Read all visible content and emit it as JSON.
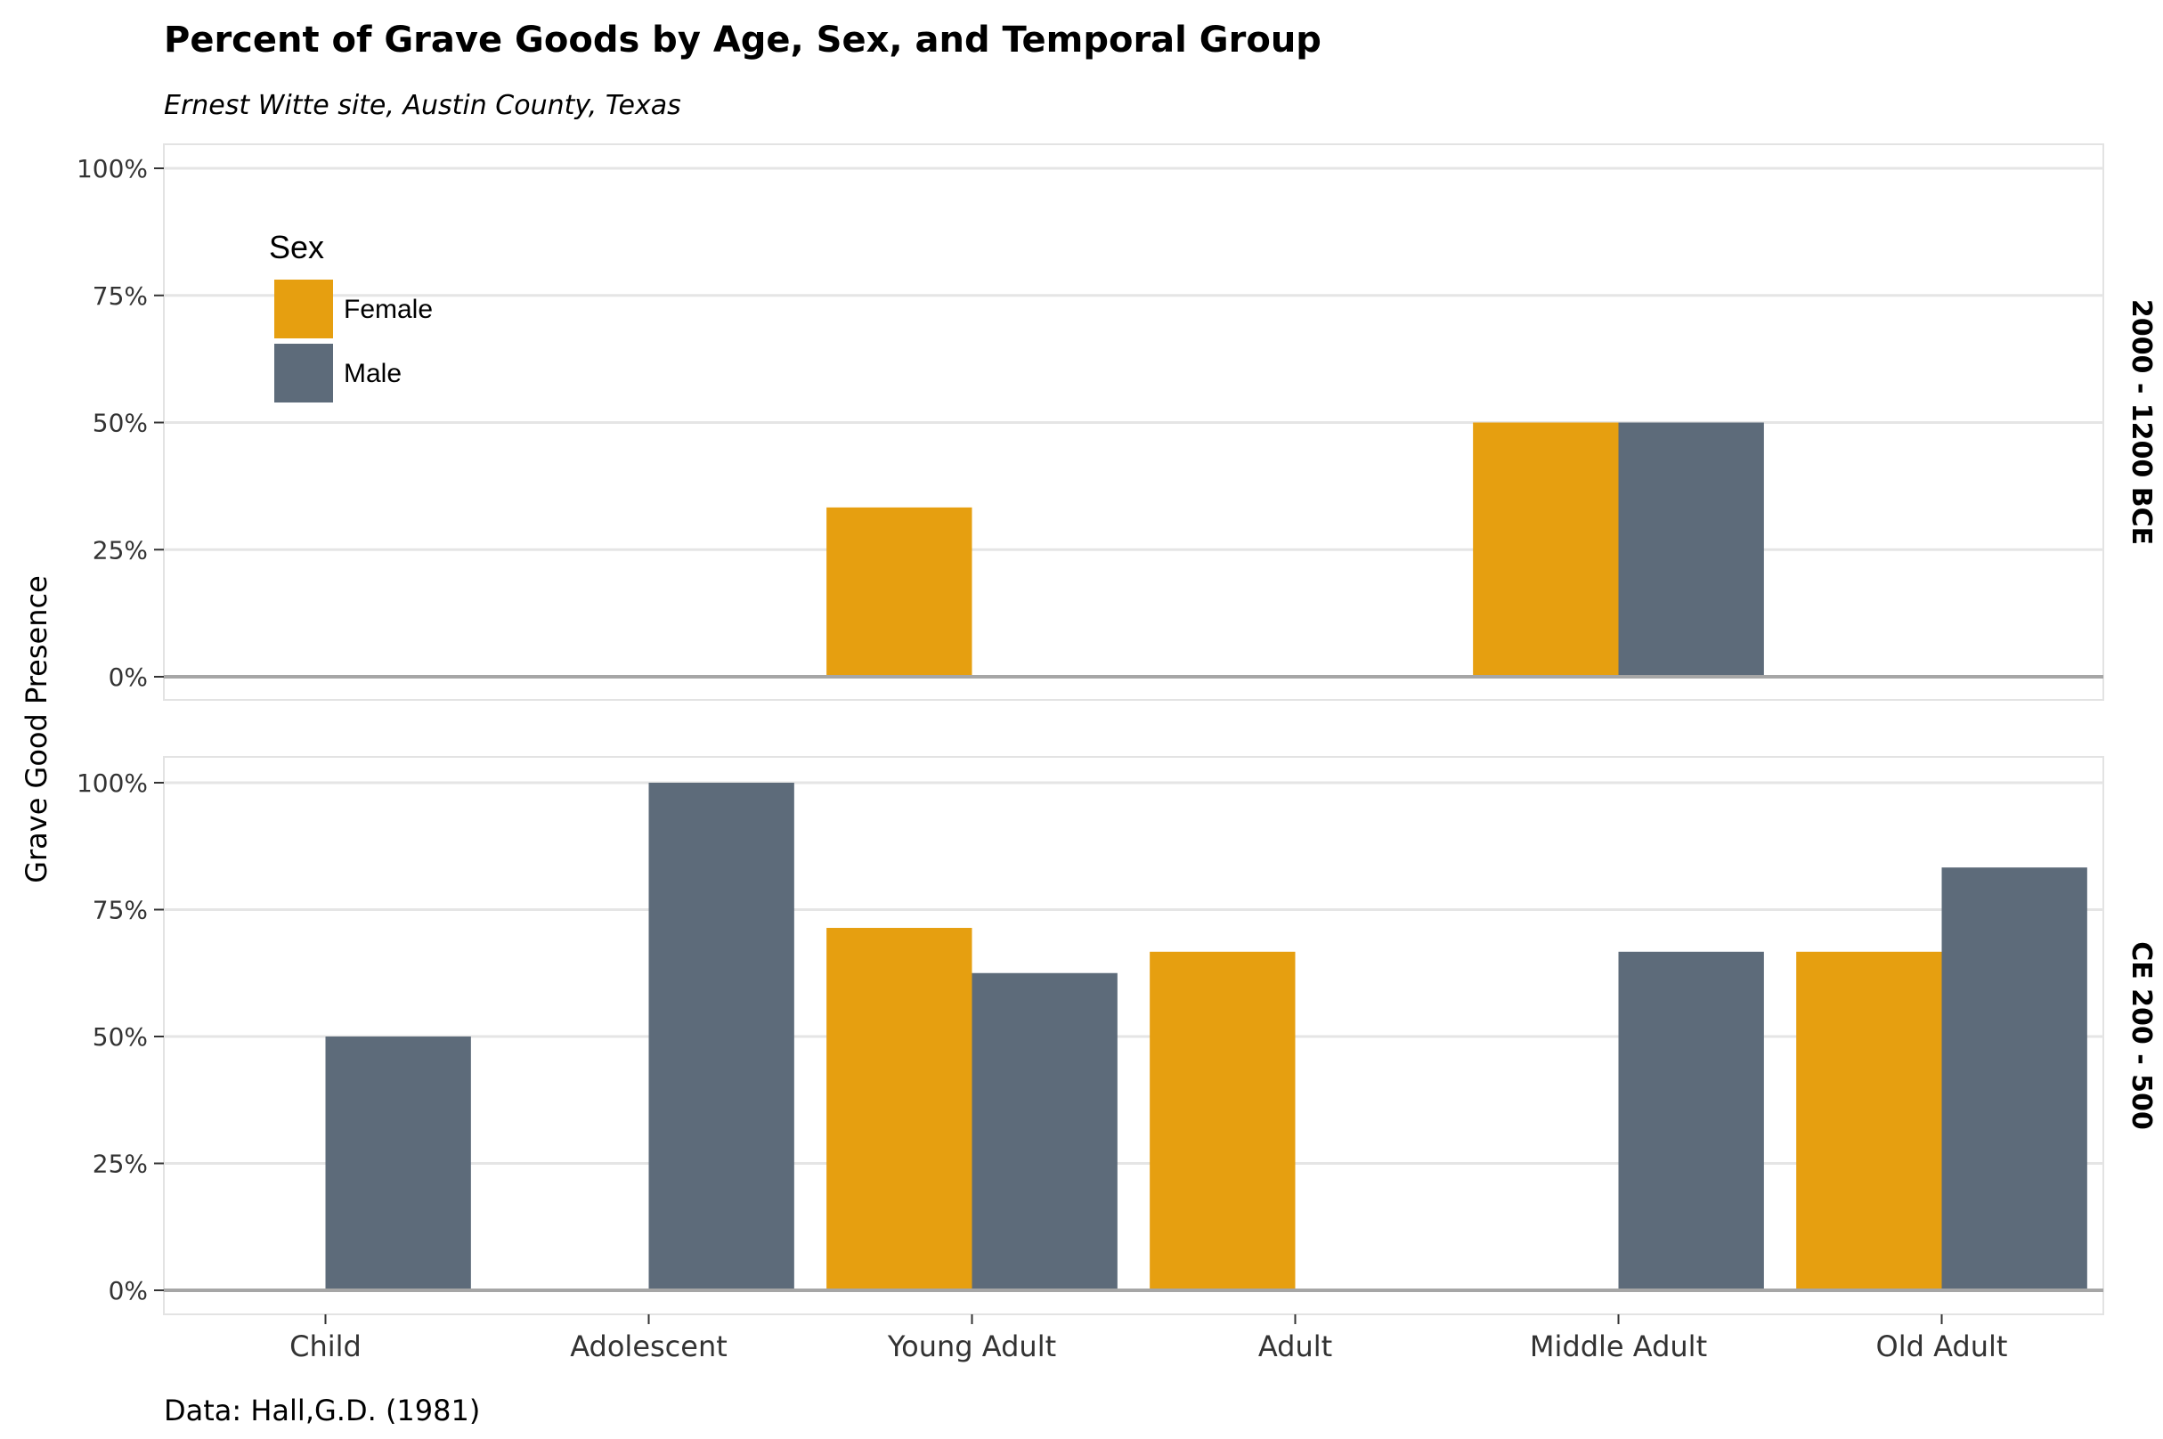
{
  "chart_data": {
    "type": "bar",
    "title": "Percent of Grave Goods by Age, Sex, and Temporal Group",
    "subtitle": "Ernest Witte site, Austin County, Texas",
    "caption": "Data: Hall,G.D. (1981)",
    "ylabel": "Grave Good Presence",
    "xlabel": "",
    "categories": [
      "Child",
      "Adolescent",
      "Young Adult",
      "Adult",
      "Middle Adult",
      "Old Adult"
    ],
    "yticks": [
      0,
      25,
      50,
      75,
      100
    ],
    "ytick_labels": [
      "0%",
      "25%",
      "50%",
      "75%",
      "100%"
    ],
    "ylim": [
      0,
      100
    ],
    "grid": true,
    "legend": {
      "title": "Sex",
      "placement": "top-left inside first panel",
      "entries": [
        {
          "name": "Female",
          "color": "#E69F10"
        },
        {
          "name": "Male",
          "color": "#5D6B7A"
        }
      ]
    },
    "facets": [
      {
        "label": "2000 - 1200 BCE",
        "series": [
          {
            "name": "Female",
            "values": [
              null,
              null,
              33.3,
              null,
              50,
              null
            ]
          },
          {
            "name": "Male",
            "values": [
              null,
              null,
              null,
              null,
              50,
              null
            ]
          }
        ]
      },
      {
        "label": "CE 200 - 500",
        "series": [
          {
            "name": "Female",
            "values": [
              null,
              null,
              71.4,
              66.7,
              null,
              66.7
            ]
          },
          {
            "name": "Male",
            "values": [
              50,
              100,
              62.5,
              null,
              66.7,
              83.3
            ]
          }
        ]
      }
    ]
  }
}
